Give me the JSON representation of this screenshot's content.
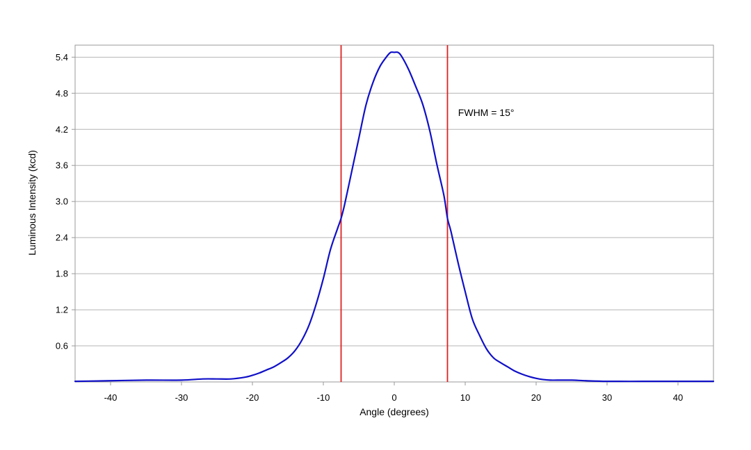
{
  "chart_data": {
    "type": "line",
    "title": "",
    "xlabel": "Angle (degrees)",
    "ylabel": "Luminous Intensity (kcd)",
    "xlim": [
      -45,
      45
    ],
    "ylim": [
      0,
      5.6
    ],
    "x_ticks": [
      -40,
      -30,
      -20,
      -10,
      0,
      10,
      20,
      30,
      40
    ],
    "y_ticks": [
      0.6,
      1.2,
      1.8,
      2.4,
      3.0,
      3.6,
      4.2,
      4.8,
      5.4
    ],
    "y_tick_labels": [
      "0.6",
      "1.2",
      "1.8",
      "2.4",
      "3.0",
      "3.6",
      "4.2",
      "4.8",
      "5.4"
    ],
    "grid": "horizontal",
    "colors": {
      "series": "#1010c8",
      "markers": "#e02020",
      "grid": "#b4b4b4",
      "frame": "#999999"
    },
    "series": [
      {
        "x": [
          -45,
          -40,
          -35,
          -30,
          -27,
          -25,
          -23,
          -21,
          -20,
          -19,
          -18,
          -17,
          -16,
          -15,
          -14,
          -13,
          -12,
          -11,
          -10,
          -9,
          -8,
          -7.5,
          -7,
          -6,
          -5,
          -4,
          -3,
          -2,
          -1,
          -0.5,
          0,
          0.5,
          1,
          2,
          3,
          4,
          5,
          6,
          7,
          7.5,
          8,
          9,
          10,
          11,
          12,
          13,
          14,
          15,
          16,
          17,
          18,
          19,
          20,
          21,
          22,
          23,
          25,
          27,
          30,
          35,
          40,
          45
        ],
        "y": [
          0.01,
          0.02,
          0.03,
          0.03,
          0.05,
          0.05,
          0.05,
          0.08,
          0.11,
          0.15,
          0.2,
          0.25,
          0.32,
          0.4,
          0.52,
          0.7,
          0.95,
          1.3,
          1.72,
          2.2,
          2.55,
          2.72,
          2.95,
          3.5,
          4.05,
          4.6,
          4.98,
          5.25,
          5.42,
          5.48,
          5.48,
          5.48,
          5.42,
          5.2,
          4.92,
          4.62,
          4.18,
          3.62,
          3.1,
          2.72,
          2.5,
          1.98,
          1.5,
          1.05,
          0.78,
          0.55,
          0.4,
          0.32,
          0.25,
          0.18,
          0.13,
          0.09,
          0.06,
          0.04,
          0.03,
          0.03,
          0.03,
          0.02,
          0.01,
          0.01,
          0.01,
          0.01
        ]
      }
    ],
    "vertical_lines": [
      -7.5,
      7.5
    ],
    "annotations": [
      {
        "text": "FWHM = 15°",
        "x": 9,
        "y": 4.48
      }
    ]
  }
}
